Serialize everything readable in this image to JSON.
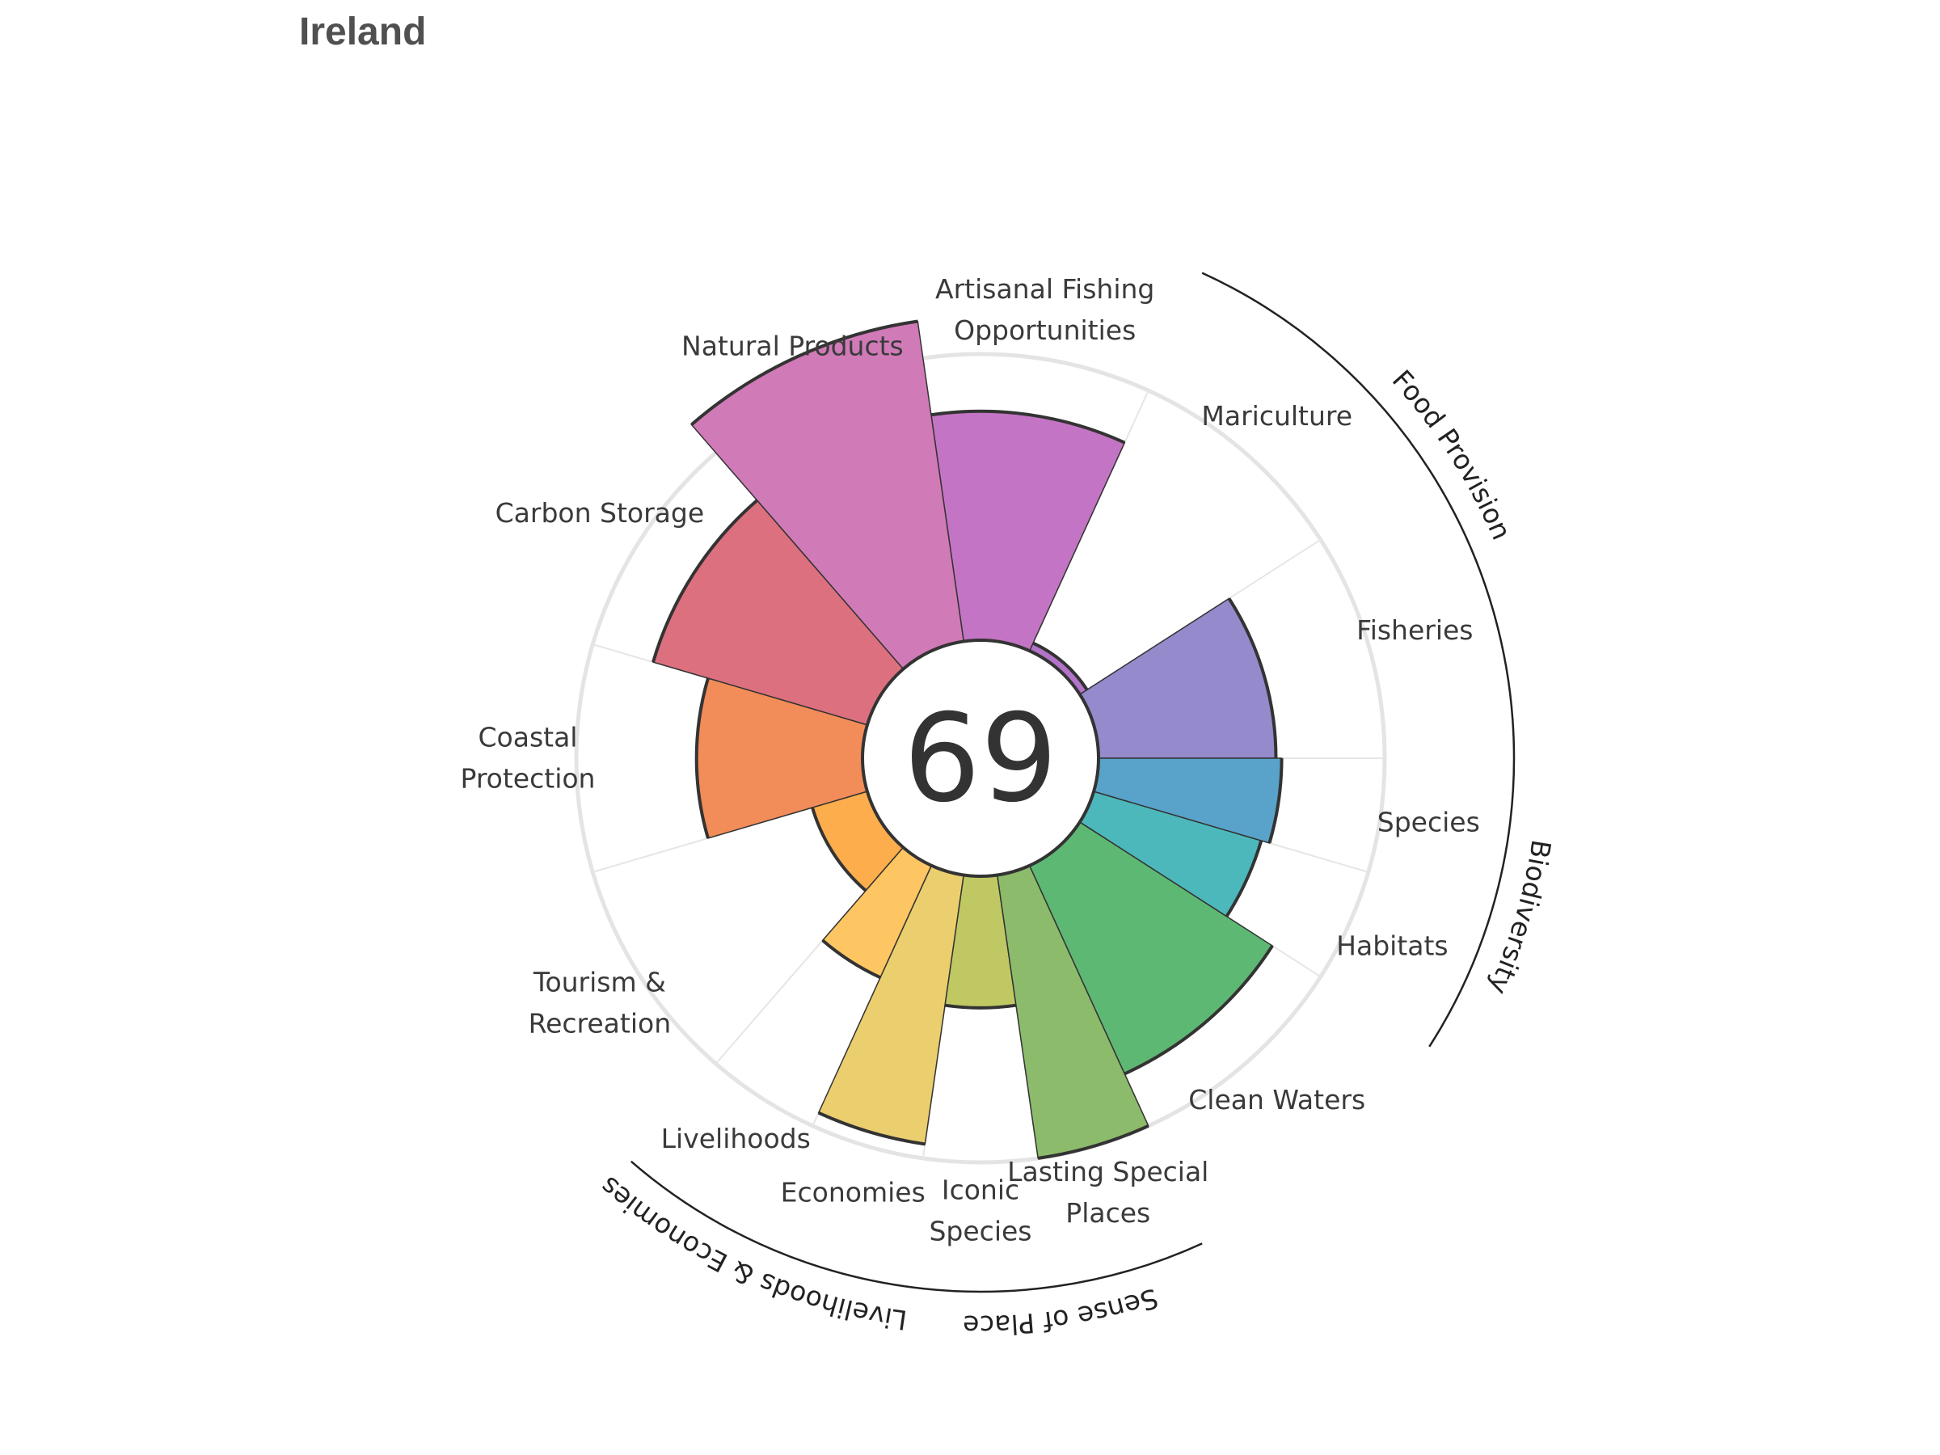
{
  "chart_data": {
    "type": "polar-bar",
    "title": "Ireland",
    "overall_score": "69",
    "rmax": 100,
    "goals": [
      {
        "name": "fisheries",
        "label": [
          "Fisheries"
        ],
        "value": 62,
        "weight": 1.0,
        "color": "#958ACC"
      },
      {
        "name": "mariculture",
        "label": [
          "Mariculture"
        ],
        "value": 3,
        "weight": 1.0,
        "color": "#B273C9"
      },
      {
        "name": "artisanal-fishing-opportunities",
        "label": [
          "Artisanal Fishing",
          "Opportunities"
        ],
        "value": 80,
        "weight": 1.0,
        "color": "#C474C4"
      },
      {
        "name": "natural-products",
        "label": [
          "Natural Products"
        ],
        "value": 113,
        "weight": 1.0,
        "color": "#D17AB8"
      },
      {
        "name": "carbon-storage",
        "label": [
          "Carbon Storage"
        ],
        "value": 78,
        "weight": 1.0,
        "color": "#DC707F"
      },
      {
        "name": "coastal-protection",
        "label": [
          "Coastal",
          "Protection"
        ],
        "value": 58,
        "weight": 1.0,
        "color": "#F28C59"
      },
      {
        "name": "tourism-recreation",
        "label": [
          "Tourism &",
          "Recreation"
        ],
        "value": 20,
        "weight": 1.0,
        "color": "#FDAD4B"
      },
      {
        "name": "livelihoods",
        "label": [
          "Livelihoods"
        ],
        "value": 43,
        "weight": 0.5,
        "color": "#FDC663"
      },
      {
        "name": "economies",
        "label": [
          "Economies"
        ],
        "value": 95,
        "weight": 0.5,
        "color": "#EBCE6E"
      },
      {
        "name": "iconic-species",
        "label": [
          "Iconic",
          "Species"
        ],
        "value": 46,
        "weight": 0.5,
        "color": "#BFC863"
      },
      {
        "name": "lasting-special-places",
        "label": [
          "Lasting Special",
          "Places"
        ],
        "value": 100,
        "weight": 0.5,
        "color": "#8CBB6C"
      },
      {
        "name": "clean-waters",
        "label": [
          "Clean Waters"
        ],
        "value": 80,
        "weight": 1.0,
        "color": "#5DB873"
      },
      {
        "name": "habitats",
        "label": [
          "Habitats"
        ],
        "value": 61,
        "weight": 0.5,
        "color": "#4CB8BC"
      },
      {
        "name": "species",
        "label": [
          "Species"
        ],
        "value": 64,
        "weight": 0.5,
        "color": "#59A3CA"
      }
    ],
    "groups": [
      {
        "name": "food-provision",
        "label": "Food Provision",
        "goals": [
          "fisheries",
          "mariculture"
        ]
      },
      {
        "name": "biodiversity",
        "label": "Biodiversity",
        "goals": [
          "species",
          "habitats"
        ]
      },
      {
        "name": "sense-of-place",
        "label": "Sense of Place",
        "goals": [
          "iconic-species",
          "lasting-special-places"
        ]
      },
      {
        "name": "livelihoods-economies",
        "label": "Livelihoods & Economies",
        "goals": [
          "livelihoods",
          "economies"
        ]
      }
    ]
  }
}
